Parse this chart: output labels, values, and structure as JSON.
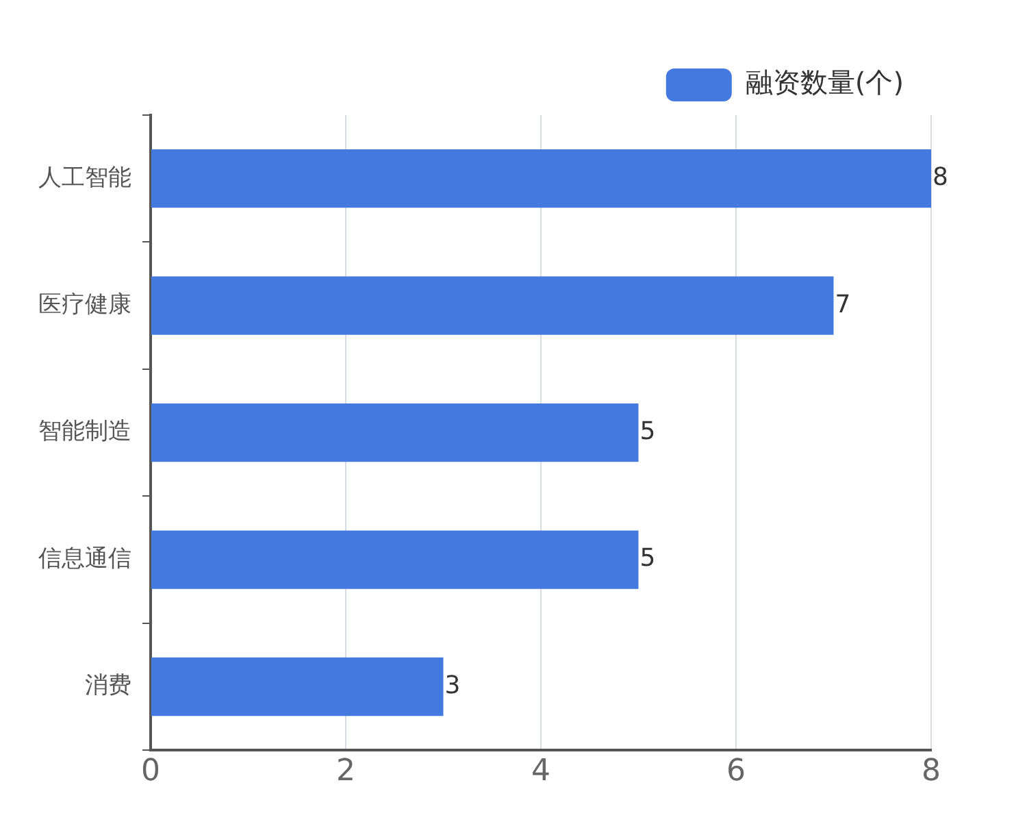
{
  "chart_data": {
    "type": "bar",
    "orientation": "horizontal",
    "categories": [
      "人工智能",
      "医疗健康",
      "智能制造",
      "信息通信",
      "消费"
    ],
    "series": [
      {
        "name": "融资数量(个)",
        "color": "#4479e0",
        "values": [
          8,
          7,
          5,
          5,
          3
        ]
      }
    ],
    "xlim": [
      0,
      8
    ],
    "xticks": [
      0,
      2,
      4,
      6,
      8
    ],
    "grid": "x",
    "legend": "top right",
    "data_labels": true
  }
}
